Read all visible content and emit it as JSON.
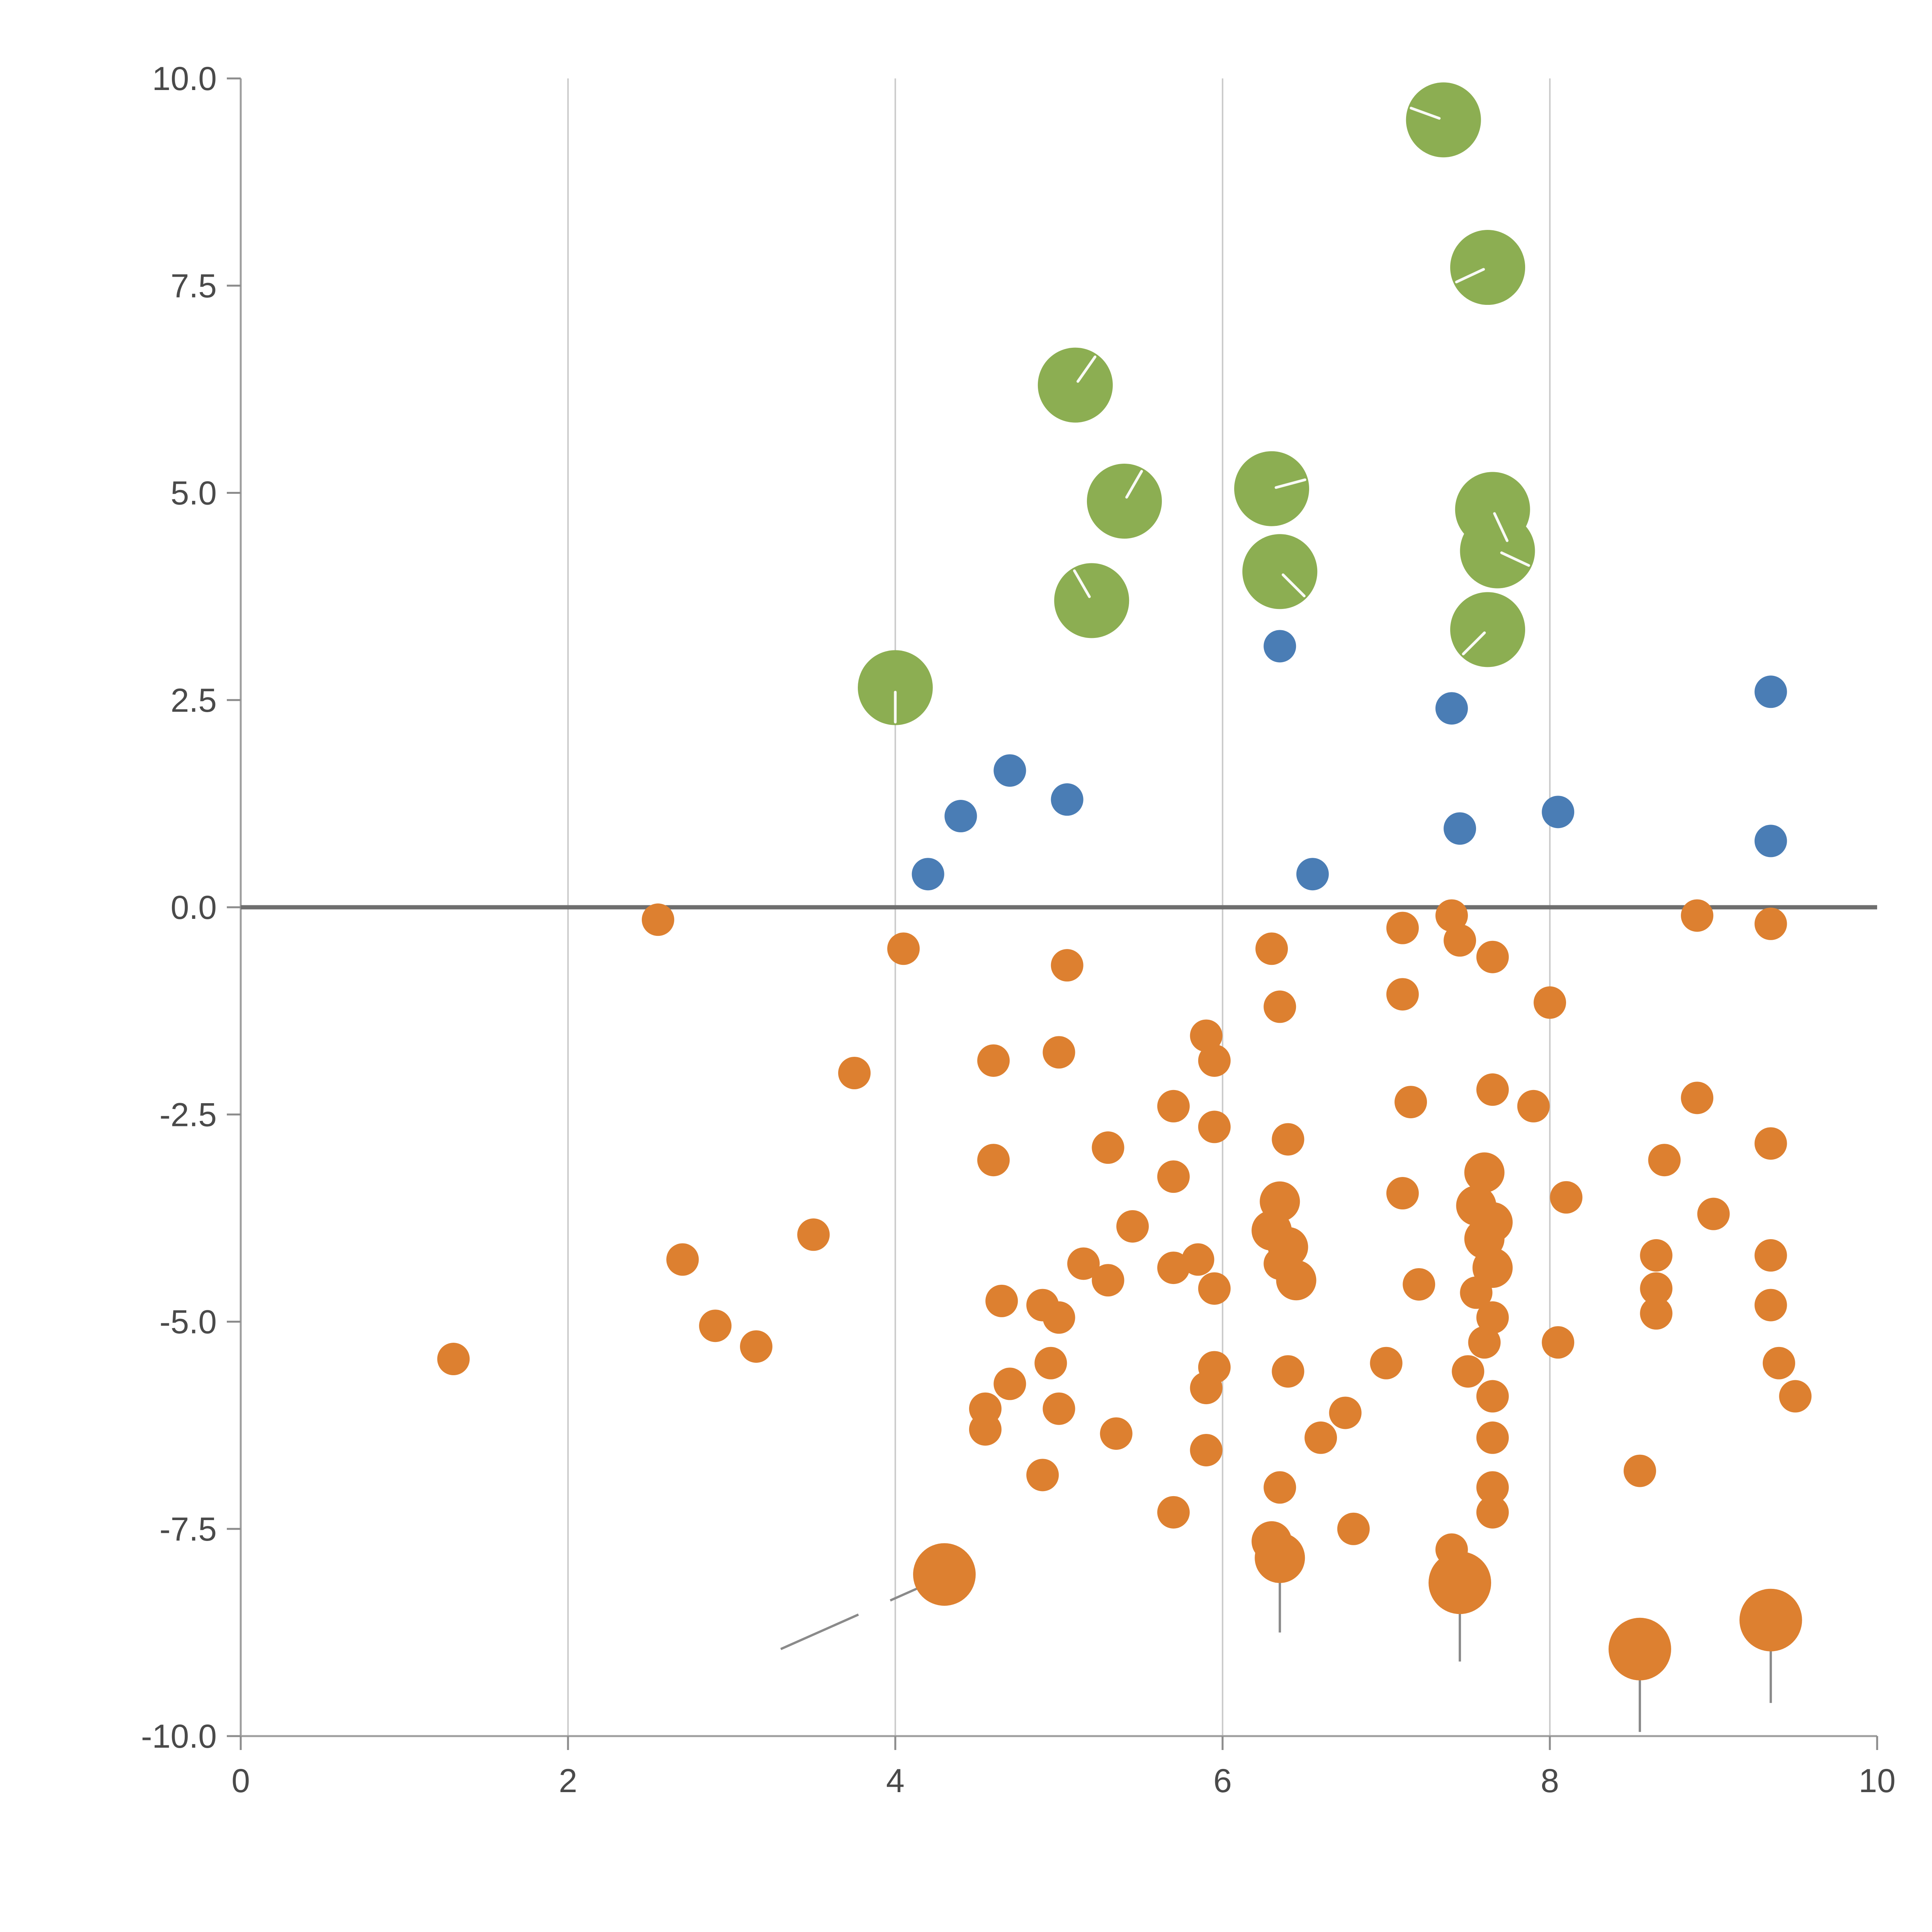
{
  "figure": {
    "background": "#ffffff",
    "title": ""
  },
  "chart_data": {
    "type": "scatter",
    "title": "",
    "xlabel": "",
    "ylabel": "",
    "xlim": [
      0,
      10
    ],
    "ylim": [
      -10,
      10
    ],
    "x_ticks": [
      0,
      2,
      4,
      6,
      8,
      10
    ],
    "x_tick_labels": [
      "0",
      "2",
      "4",
      "6",
      "8",
      "10"
    ],
    "y_ticks": [
      -10,
      -7.5,
      -5,
      -2.5,
      0,
      2.5,
      5,
      7.5,
      10
    ],
    "y_tick_labels": [
      "-10.0",
      "-7.5",
      "-5.0",
      "-2.5",
      "0.0",
      "2.5",
      "5.0",
      "7.5",
      "10.0"
    ],
    "grid_x": [
      2,
      4,
      6,
      8
    ],
    "grid_on": true,
    "legend": "none",
    "zero_line_y": 0,
    "style": {
      "grid_color": "#cccccc",
      "spine_color": "#9e9e9e",
      "tick_color": "#8c8c8c",
      "label_color": "#4a4a4a",
      "zero_line_color": "#6e6e6e"
    },
    "series": [
      {
        "name": "green",
        "color": "#8cae52",
        "marker": "circle-large",
        "points": [
          [
            7.35,
            9.5,
            97,
            160
          ],
          [
            7.62,
            7.72,
            97,
            205
          ],
          [
            5.1,
            6.3,
            97,
            55
          ],
          [
            5.4,
            4.9,
            97,
            60
          ],
          [
            6.3,
            5.05,
            97,
            15
          ],
          [
            6.35,
            4.05,
            97,
            -45
          ],
          [
            5.2,
            3.7,
            97,
            120
          ],
          [
            7.65,
            4.8,
            97,
            -65
          ],
          [
            7.68,
            4.3,
            97,
            -25
          ],
          [
            7.62,
            3.35,
            97,
            -135
          ],
          [
            4.0,
            2.65,
            97,
            -90
          ]
        ]
      },
      {
        "name": "blue",
        "color": "#4a7db5",
        "marker": "circle",
        "points": [
          [
            4.2,
            0.4,
            42
          ],
          [
            4.4,
            1.1,
            42
          ],
          [
            4.7,
            1.65,
            42
          ],
          [
            5.05,
            1.3,
            42
          ],
          [
            6.35,
            3.15,
            42
          ],
          [
            6.55,
            0.4,
            42
          ],
          [
            7.4,
            2.4,
            42
          ],
          [
            7.45,
            0.95,
            42
          ],
          [
            8.05,
            1.15,
            42
          ],
          [
            9.35,
            2.6,
            42
          ],
          [
            9.35,
            0.8,
            42
          ]
        ]
      },
      {
        "name": "orange",
        "color": "#dd8030",
        "marker": "circle",
        "points": [
          [
            2.55,
            -0.15,
            42
          ],
          [
            4.05,
            -0.5,
            42
          ],
          [
            5.05,
            -0.7,
            42
          ],
          [
            6.3,
            -0.5,
            42
          ],
          [
            7.1,
            -0.25,
            42
          ],
          [
            7.4,
            -0.1,
            42
          ],
          [
            7.45,
            -0.4,
            42
          ],
          [
            7.65,
            -0.6,
            42
          ],
          [
            8.9,
            -0.1,
            42
          ],
          [
            9.35,
            -0.2,
            42
          ],
          [
            6.35,
            -1.2,
            42
          ],
          [
            7.1,
            -1.05,
            42
          ],
          [
            8.0,
            -1.15,
            42
          ],
          [
            5.9,
            -1.55,
            42
          ],
          [
            5.95,
            -1.85,
            42
          ],
          [
            4.6,
            -1.85,
            42
          ],
          [
            5.0,
            -1.75,
            42
          ],
          [
            3.75,
            -2.0,
            42
          ],
          [
            7.15,
            -2.35,
            42
          ],
          [
            7.65,
            -2.2,
            42
          ],
          [
            7.9,
            -2.4,
            42
          ],
          [
            8.9,
            -2.3,
            42
          ],
          [
            5.7,
            -2.4,
            42
          ],
          [
            5.95,
            -2.65,
            42
          ],
          [
            6.4,
            -2.8,
            42
          ],
          [
            5.3,
            -2.9,
            42
          ],
          [
            4.6,
            -3.05,
            42
          ],
          [
            5.7,
            -3.25,
            42
          ],
          [
            8.7,
            -3.05,
            42
          ],
          [
            9.35,
            -2.85,
            42
          ],
          [
            7.6,
            -3.2,
            52
          ],
          [
            8.1,
            -3.5,
            42
          ],
          [
            7.1,
            -3.45,
            42
          ],
          [
            7.55,
            -3.6,
            52
          ],
          [
            7.65,
            -3.8,
            52
          ],
          [
            5.45,
            -3.85,
            42
          ],
          [
            3.5,
            -3.95,
            42
          ],
          [
            6.35,
            -3.55,
            52
          ],
          [
            6.3,
            -3.9,
            52
          ],
          [
            6.4,
            -4.1,
            52
          ],
          [
            9.0,
            -3.7,
            42
          ],
          [
            2.7,
            -4.25,
            42
          ],
          [
            5.15,
            -4.3,
            42
          ],
          [
            5.3,
            -4.5,
            42
          ],
          [
            5.7,
            -4.35,
            42
          ],
          [
            5.85,
            -4.25,
            42
          ],
          [
            5.95,
            -4.6,
            42
          ],
          [
            6.35,
            -4.3,
            42
          ],
          [
            6.45,
            -4.5,
            52
          ],
          [
            7.2,
            -4.55,
            42
          ],
          [
            8.65,
            -4.2,
            42
          ],
          [
            8.65,
            -4.6,
            42
          ],
          [
            9.35,
            -4.2,
            42
          ],
          [
            4.65,
            -4.75,
            42
          ],
          [
            4.9,
            -4.8,
            42
          ],
          [
            5.0,
            -4.95,
            42
          ],
          [
            8.65,
            -4.9,
            42
          ],
          [
            9.35,
            -4.8,
            42
          ],
          [
            2.9,
            -5.05,
            42
          ],
          [
            3.15,
            -5.3,
            42
          ],
          [
            1.3,
            -5.45,
            42
          ],
          [
            7.6,
            -4.0,
            52
          ],
          [
            7.65,
            -4.35,
            52
          ],
          [
            7.55,
            -4.65,
            42
          ],
          [
            7.65,
            -4.95,
            42
          ],
          [
            7.6,
            -5.25,
            42
          ],
          [
            4.95,
            -5.5,
            42
          ],
          [
            4.7,
            -5.75,
            42
          ],
          [
            5.95,
            -5.55,
            42
          ],
          [
            5.9,
            -5.8,
            42
          ],
          [
            6.4,
            -5.6,
            42
          ],
          [
            7.0,
            -5.5,
            42
          ],
          [
            7.5,
            -5.6,
            42
          ],
          [
            7.65,
            -5.9,
            42
          ],
          [
            8.05,
            -5.25,
            42
          ],
          [
            9.4,
            -5.5,
            42
          ],
          [
            9.5,
            -5.9,
            42
          ],
          [
            4.55,
            -6.05,
            42
          ],
          [
            4.55,
            -6.3,
            42
          ],
          [
            5.0,
            -6.05,
            42
          ],
          [
            5.35,
            -6.35,
            42
          ],
          [
            6.75,
            -6.1,
            42
          ],
          [
            6.6,
            -6.4,
            42
          ],
          [
            5.9,
            -6.55,
            42
          ],
          [
            7.65,
            -6.4,
            42
          ],
          [
            4.9,
            -6.85,
            42
          ],
          [
            8.55,
            -6.8,
            42
          ],
          [
            7.65,
            -7.0,
            42
          ],
          [
            7.65,
            -7.3,
            42
          ],
          [
            5.7,
            -7.3,
            42
          ],
          [
            6.35,
            -7.0,
            42
          ],
          [
            6.8,
            -7.5,
            42
          ],
          [
            6.3,
            -7.65,
            52
          ],
          [
            6.35,
            -7.85,
            65
          ],
          [
            7.4,
            -7.75,
            42
          ],
          [
            7.45,
            -8.15,
            81
          ],
          [
            4.3,
            -8.05,
            81
          ],
          [
            8.55,
            -8.95,
            81
          ],
          [
            9.35,
            -8.6,
            81
          ]
        ]
      }
    ],
    "annotations": {
      "color": "#8a8a8a",
      "stems": [
        {
          "x": 6.35,
          "y1": -7.95,
          "y2": -8.75
        },
        {
          "x": 7.45,
          "y1": -8.25,
          "y2": -9.1
        },
        {
          "x": 8.55,
          "y1": -9.0,
          "y2": -9.95
        },
        {
          "x": 9.35,
          "y1": -8.7,
          "y2": -9.6
        }
      ],
      "diagonal": {
        "x1": 3.3,
        "y1": -8.95,
        "x2": 4.27,
        "y2": -8.1,
        "dashed": true
      }
    }
  }
}
